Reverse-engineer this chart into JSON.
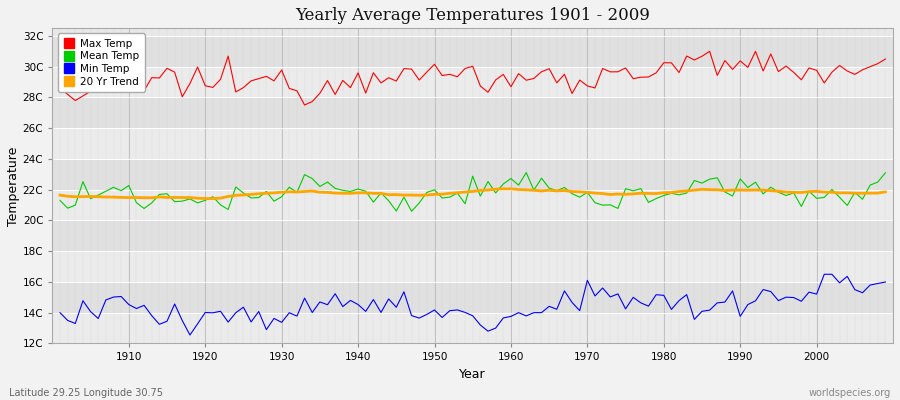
{
  "title": "Yearly Average Temperatures 1901 - 2009",
  "xlabel": "Year",
  "ylabel": "Temperature",
  "footer_left": "Latitude 29.25 Longitude 30.75",
  "footer_right": "worldspecies.org",
  "start_year": 1901,
  "end_year": 2009,
  "ylim": [
    12,
    32.5
  ],
  "yticks": [
    12,
    14,
    16,
    18,
    20,
    22,
    24,
    26,
    28,
    30,
    32
  ],
  "ytick_labels": [
    "12C",
    "14C",
    "16C",
    "18C",
    "20C",
    "22C",
    "24C",
    "26C",
    "28C",
    "30C",
    "32C"
  ],
  "xticks": [
    1910,
    1920,
    1930,
    1940,
    1950,
    1960,
    1970,
    1980,
    1990,
    2000
  ],
  "fig_bg_color": "#f0f0f0",
  "plot_bg_color": "#e8e8e8",
  "band_color_light": "#ebebeb",
  "band_color_dark": "#e0e0e0",
  "grid_color": "#ffffff",
  "legend_items": [
    "Max Temp",
    "Mean Temp",
    "Min Temp",
    "20 Yr Trend"
  ],
  "legend_colors": [
    "#ff0000",
    "#00cc00",
    "#0000ff",
    "#ffa500"
  ],
  "line_color_max": "#ff0000",
  "line_color_mean": "#00cc00",
  "line_color_min": "#0000ff",
  "line_color_trend": "#ffa500",
  "trend_linewidth": 2.0,
  "data_linewidth": 0.8
}
